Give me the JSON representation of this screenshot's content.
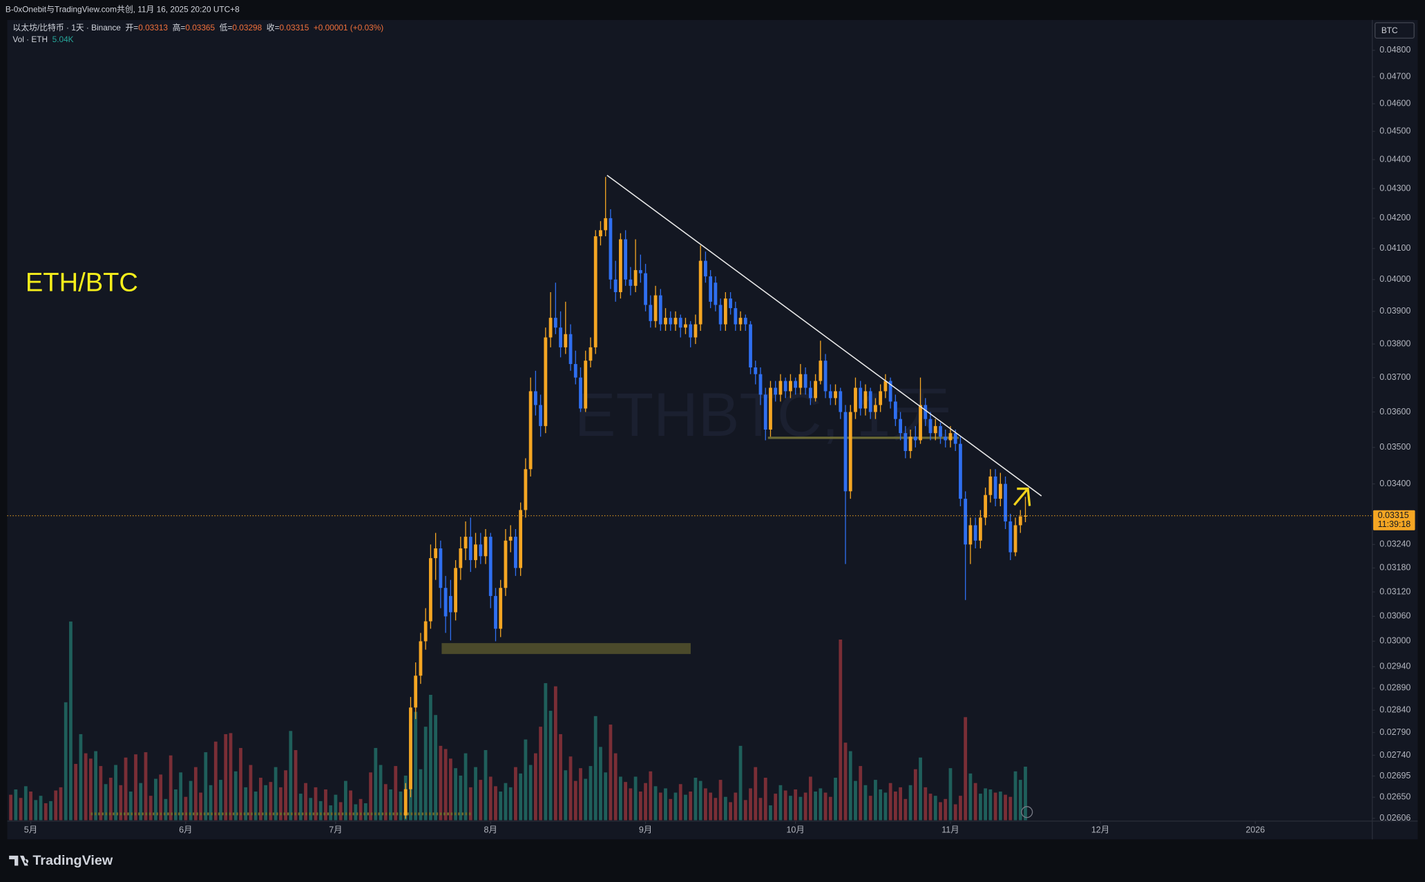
{
  "header": {
    "share": "B-0xOnebit与TradingView.com共创, 11月 16, 2025 20:20 UTC+8",
    "brand": "TradingView"
  },
  "chart_data": {
    "type": "candlestick",
    "symbol": "以太坊/比特币 · 1天 · Binance",
    "ohlc_labels": [
      "开=",
      "高=",
      "低=",
      "收="
    ],
    "change": "+0.00001 (+0.03%)",
    "currency": "BTC",
    "annotation": "ETH/BTC",
    "watermark": "ETHBTC, 1天",
    "countdown": "11:39:18",
    "up_color": "#f5a623",
    "down_color": "#2f6ff0",
    "log_scale": true,
    "grid": false,
    "xlim": [
      -0.7,
      272.4
    ],
    "xticks": [
      {
        "value": 4,
        "label": "5月"
      },
      {
        "value": 35,
        "label": "6月"
      },
      {
        "value": 65,
        "label": "7月"
      },
      {
        "value": 96,
        "label": "8月"
      },
      {
        "value": 127,
        "label": "9月"
      },
      {
        "value": 157,
        "label": "10月"
      },
      {
        "value": 188,
        "label": "11月"
      },
      {
        "value": 218,
        "label": "12月"
      },
      {
        "value": 249,
        "label": "2026"
      }
    ],
    "ylim": [
      0.02602,
      0.04917
    ],
    "yticks": [
      {
        "value": 0.048,
        "label": "0.04800"
      },
      {
        "value": 0.047,
        "label": "0.04700"
      },
      {
        "value": 0.046,
        "label": "0.04600"
      },
      {
        "value": 0.045,
        "label": "0.04500"
      },
      {
        "value": 0.044,
        "label": "0.04400"
      },
      {
        "value": 0.043,
        "label": "0.04300"
      },
      {
        "value": 0.042,
        "label": "0.04200"
      },
      {
        "value": 0.041,
        "label": "0.04100"
      },
      {
        "value": 0.04,
        "label": "0.04000"
      },
      {
        "value": 0.039,
        "label": "0.03900"
      },
      {
        "value": 0.038,
        "label": "0.03800"
      },
      {
        "value": 0.037,
        "label": "0.03700"
      },
      {
        "value": 0.036,
        "label": "0.03600"
      },
      {
        "value": 0.035,
        "label": "0.03500"
      },
      {
        "value": 0.034,
        "label": "0.03400"
      },
      {
        "value": 0.0324,
        "label": "0.03240"
      },
      {
        "value": 0.0318,
        "label": "0.03180"
      },
      {
        "value": 0.0312,
        "label": "0.03120"
      },
      {
        "value": 0.0306,
        "label": "0.03060"
      },
      {
        "value": 0.03,
        "label": "0.03000"
      },
      {
        "value": 0.0294,
        "label": "0.02940"
      },
      {
        "value": 0.0289,
        "label": "0.02890"
      },
      {
        "value": 0.0284,
        "label": "0.02840"
      },
      {
        "value": 0.0279,
        "label": "0.02790"
      },
      {
        "value": 0.0274,
        "label": "0.02740"
      },
      0.02695,
      {
        "value": 0.0265,
        "label": "0.02650"
      },
      0.02606
    ],
    "open": [
      null,
      null,
      null,
      null,
      null,
      null,
      null,
      null,
      null,
      null,
      null,
      null,
      null,
      null,
      null,
      null,
      null,
      null,
      null,
      null,
      null,
      null,
      null,
      null,
      null,
      null,
      null,
      null,
      null,
      null,
      null,
      null,
      null,
      null,
      null,
      null,
      null,
      null,
      null,
      null,
      null,
      null,
      null,
      null,
      null,
      null,
      null,
      null,
      null,
      null,
      null,
      null,
      null,
      null,
      null,
      null,
      null,
      null,
      null,
      null,
      null,
      null,
      null,
      null,
      null,
      null,
      null,
      null,
      null,
      null,
      null,
      null,
      null,
      null,
      null,
      null,
      null,
      null,
      null,
      0.02612,
      0.02667,
      0.02846,
      0.02919,
      0.03,
      0.03048,
      0.03205,
      0.0323,
      0.0313,
      0.0311,
      0.0307,
      0.0318,
      0.0323,
      0.0326,
      0.032,
      0.0324,
      0.0321,
      0.0326,
      0.0311,
      0.0303,
      0.0313,
      0.0325,
      0.0326,
      0.0318,
      0.0333,
      0.0344,
      0.0366,
      0.0362,
      0.0356,
      0.0382,
      0.0388,
      0.0385,
      0.0379,
      0.0383,
      0.0374,
      0.037,
      0.0361,
      0.0375,
      0.0379,
      0.0414,
      0.0416,
      0.042,
      0.04,
      0.0396,
      0.0413,
      0.04,
      0.0398,
      0.0403,
      0.0402,
      0.0392,
      0.0387,
      0.0395,
      0.0386,
      0.0388,
      0.0386,
      0.0388,
      0.0385,
      0.0386,
      0.0382,
      0.0386,
      0.0406,
      0.0401,
      0.0399,
      0.0392,
      0.0386,
      0.0394,
      0.0391,
      0.0386,
      0.0388,
      0.0386,
      0.0373,
      0.0371,
      0.0365,
      0.0355,
      0.0367,
      0.0365,
      0.0369,
      0.0366,
      0.0369,
      0.0367,
      0.0371,
      0.0367,
      0.0364,
      0.0369,
      0.0375,
      0.0366,
      0.0364,
      0.0366,
      0.036,
      0.0338,
      0.036,
      0.0367,
      0.0361,
      0.0366,
      0.036,
      0.0362,
      0.0366,
      0.0369,
      0.0363,
      0.0358,
      0.0354,
      0.0349,
      0.0353,
      0.0352,
      0.0362,
      0.0358,
      0.0354,
      0.0356,
      0.0353,
      0.0352,
      0.0354,
      0.0351,
      0.0336,
      0.0324,
      0.0329,
      0.0325,
      0.0331,
      0.0337,
      0.0342,
      0.0336,
      0.034,
      0.033,
      0.0322,
      0.0329,
      0.03313
    ],
    "high": [
      null,
      null,
      null,
      null,
      null,
      null,
      null,
      null,
      null,
      null,
      null,
      null,
      null,
      null,
      null,
      null,
      null,
      null,
      null,
      null,
      null,
      null,
      null,
      null,
      null,
      null,
      null,
      null,
      null,
      null,
      null,
      null,
      null,
      null,
      null,
      null,
      null,
      null,
      null,
      null,
      null,
      null,
      null,
      null,
      null,
      null,
      null,
      null,
      null,
      null,
      null,
      null,
      null,
      null,
      null,
      null,
      null,
      null,
      null,
      null,
      null,
      null,
      null,
      null,
      null,
      null,
      null,
      null,
      null,
      null,
      null,
      null,
      null,
      null,
      null,
      null,
      null,
      null,
      null,
      0.0268,
      0.0287,
      0.0295,
      0.0302,
      0.0308,
      0.0324,
      0.0327,
      0.0325,
      0.0316,
      0.0315,
      0.032,
      0.0326,
      0.033,
      0.0331,
      0.0327,
      0.0327,
      0.0328,
      0.0327,
      0.0313,
      0.0315,
      0.0328,
      0.0329,
      0.0328,
      0.0335,
      0.0347,
      0.037,
      0.0372,
      0.0365,
      0.0385,
      0.0396,
      0.0399,
      0.039,
      0.0393,
      0.0386,
      0.0378,
      0.0373,
      0.0378,
      0.0382,
      0.0416,
      0.0419,
      0.0434,
      0.0423,
      0.0406,
      0.0415,
      0.0416,
      0.0404,
      0.0413,
      0.0408,
      0.0405,
      0.0395,
      0.0398,
      0.0397,
      0.0391,
      0.039,
      0.039,
      0.0389,
      0.0388,
      0.0387,
      0.0389,
      0.0411,
      0.0409,
      0.0403,
      0.0401,
      0.0394,
      0.0396,
      0.0396,
      0.0393,
      0.039,
      0.0389,
      0.0387,
      0.0375,
      0.0373,
      0.0367,
      0.0369,
      0.0369,
      0.0371,
      0.037,
      0.0371,
      0.037,
      0.0374,
      0.0373,
      0.0369,
      0.0371,
      0.0381,
      0.0377,
      0.0368,
      0.0368,
      0.0367,
      0.0362,
      0.0362,
      0.037,
      0.0369,
      0.0368,
      0.0367,
      0.0364,
      0.0368,
      0.0371,
      0.037,
      0.0365,
      0.036,
      0.0356,
      0.0355,
      0.0356,
      0.037,
      0.0364,
      0.036,
      0.0358,
      0.0357,
      0.0355,
      0.0356,
      0.0355,
      0.0353,
      0.0338,
      0.0331,
      0.0331,
      0.0333,
      0.0339,
      0.0344,
      0.0344,
      0.0343,
      0.0342,
      0.0332,
      0.0331,
      0.0333,
      0.03365
    ],
    "low": [
      null,
      null,
      null,
      null,
      null,
      null,
      null,
      null,
      null,
      null,
      null,
      null,
      null,
      null,
      null,
      null,
      null,
      null,
      null,
      null,
      null,
      null,
      null,
      null,
      null,
      null,
      null,
      null,
      null,
      null,
      null,
      null,
      null,
      null,
      null,
      null,
      null,
      null,
      null,
      null,
      null,
      null,
      null,
      null,
      null,
      null,
      null,
      null,
      null,
      null,
      null,
      null,
      null,
      null,
      null,
      null,
      null,
      null,
      null,
      null,
      null,
      null,
      null,
      null,
      null,
      null,
      null,
      null,
      null,
      null,
      null,
      null,
      null,
      null,
      null,
      null,
      null,
      null,
      null,
      0.02605,
      0.0265,
      0.0282,
      0.029,
      0.0298,
      0.0303,
      0.0315,
      0.0308,
      0.0302,
      0.03002,
      0.0305,
      0.0315,
      0.032,
      0.0317,
      0.0318,
      0.0319,
      0.0319,
      0.0308,
      0.03,
      0.0301,
      0.0311,
      0.0322,
      0.0316,
      0.0316,
      0.0331,
      0.0342,
      0.0359,
      0.0353,
      0.0354,
      0.0379,
      0.0383,
      0.0376,
      0.0377,
      0.0372,
      0.0368,
      0.036,
      0.036,
      0.0373,
      0.0377,
      0.0411,
      0.0414,
      0.0397,
      0.0393,
      0.0394,
      0.0398,
      0.0395,
      0.0396,
      0.0399,
      0.039,
      0.0385,
      0.0385,
      0.0384,
      0.0384,
      0.0384,
      0.0384,
      0.0382,
      0.0383,
      0.0379,
      0.038,
      0.0384,
      0.0399,
      0.0391,
      0.039,
      0.0384,
      0.0384,
      0.0389,
      0.0384,
      0.0384,
      0.0384,
      0.0371,
      0.0368,
      0.0362,
      0.0352,
      0.0353,
      0.0363,
      0.0363,
      0.0364,
      0.0364,
      0.0365,
      0.0365,
      0.0365,
      0.0362,
      0.0363,
      0.0368,
      0.0364,
      0.0362,
      0.0362,
      0.0358,
      0.0319,
      0.0336,
      0.0358,
      0.0359,
      0.0359,
      0.0358,
      0.0358,
      0.036,
      0.0364,
      0.0361,
      0.0356,
      0.0352,
      0.0347,
      0.0347,
      0.035,
      0.0351,
      0.0356,
      0.0352,
      0.0352,
      0.0351,
      0.035,
      0.035,
      0.0349,
      0.0334,
      0.031,
      0.0319,
      0.0323,
      0.0323,
      0.0329,
      0.0335,
      0.0334,
      0.0334,
      0.0328,
      0.032,
      0.0321,
      0.0327,
      0.03298
    ],
    "close": [
      null,
      null,
      null,
      null,
      null,
      null,
      null,
      null,
      null,
      null,
      null,
      null,
      null,
      null,
      null,
      null,
      null,
      null,
      null,
      null,
      null,
      null,
      null,
      null,
      null,
      null,
      null,
      null,
      null,
      null,
      null,
      null,
      null,
      null,
      null,
      null,
      null,
      null,
      null,
      null,
      null,
      null,
      null,
      null,
      null,
      null,
      null,
      null,
      null,
      null,
      null,
      null,
      null,
      null,
      null,
      null,
      null,
      null,
      null,
      null,
      null,
      null,
      null,
      null,
      null,
      null,
      null,
      null,
      null,
      null,
      null,
      null,
      null,
      null,
      null,
      null,
      null,
      null,
      null,
      0.02667,
      0.02846,
      0.02919,
      0.03,
      0.03048,
      0.03205,
      0.0323,
      0.0313,
      0.0306,
      0.0307,
      0.0318,
      0.0323,
      0.0326,
      0.032,
      0.0324,
      0.0321,
      0.0326,
      0.0311,
      0.0303,
      0.0313,
      0.0325,
      0.0326,
      0.0318,
      0.0333,
      0.0344,
      0.0366,
      0.0362,
      0.0356,
      0.0382,
      0.0388,
      0.0385,
      0.0379,
      0.0383,
      0.0374,
      0.037,
      0.0361,
      0.0375,
      0.0379,
      0.0414,
      0.0416,
      0.042,
      0.04,
      0.0396,
      0.0413,
      0.04,
      0.0398,
      0.0403,
      0.0402,
      0.0392,
      0.0387,
      0.0395,
      0.0386,
      0.0388,
      0.0386,
      0.0388,
      0.0385,
      0.0386,
      0.0382,
      0.0386,
      0.0406,
      0.0401,
      0.0393,
      0.0392,
      0.0386,
      0.0394,
      0.0391,
      0.0386,
      0.0388,
      0.0386,
      0.0373,
      0.0371,
      0.0365,
      0.0355,
      0.0367,
      0.0365,
      0.0369,
      0.0366,
      0.0369,
      0.0367,
      0.0371,
      0.0367,
      0.0364,
      0.0369,
      0.0375,
      0.0366,
      0.0364,
      0.0366,
      0.036,
      0.0338,
      0.036,
      0.0367,
      0.0361,
      0.0366,
      0.036,
      0.0362,
      0.0366,
      0.0369,
      0.0363,
      0.0358,
      0.0354,
      0.0349,
      0.0353,
      0.0352,
      0.0362,
      0.0358,
      0.0354,
      0.0356,
      0.0353,
      0.0352,
      0.0354,
      0.0351,
      0.0336,
      0.0324,
      0.0329,
      0.0325,
      0.0331,
      0.0337,
      0.0342,
      0.0336,
      0.034,
      0.033,
      0.0322,
      0.0329,
      0.03313,
      0.03315
    ],
    "volume": {
      "name": "Vol · ETH",
      "current_label": "5.04K",
      "up_color": "#1f5f5b",
      "down_color": "#7a2e36",
      "ylim": [
        0,
        20000
      ],
      "values": [
        2400,
        2900,
        2100,
        3200,
        2700,
        1900,
        2300,
        1600,
        1800,
        2800,
        3100,
        11100,
        18700,
        5300,
        8100,
        6300,
        5800,
        6500,
        5100,
        3400,
        4000,
        5200,
        3300,
        5900,
        2700,
        6200,
        3500,
        6400,
        2300,
        3900,
        4300,
        2000,
        6100,
        2900,
        4500,
        2200,
        3700,
        5000,
        2600,
        6400,
        3300,
        7400,
        3800,
        8100,
        8200,
        4600,
        6800,
        3100,
        5200,
        2700,
        4000,
        3300,
        3600,
        5000,
        3100,
        4700,
        8400,
        6600,
        2500,
        3500,
        2100,
        3100,
        1800,
        2900,
        1400,
        2400,
        1700,
        3700,
        2800,
        1500,
        2000,
        1600,
        4500,
        6800,
        5200,
        3400,
        2900,
        5100,
        2700,
        4200,
        9100,
        10200,
        4800,
        8800,
        11800,
        9900,
        7000,
        6700,
        5800,
        4900,
        4200,
        6300,
        3100,
        5000,
        3800,
        6600,
        4100,
        3200,
        2700,
        3500,
        3100,
        5000,
        4400,
        7600,
        5200,
        6300,
        8800,
        12900,
        10300,
        12600,
        8100,
        4700,
        6000,
        3700,
        4900,
        3900,
        5100,
        9800,
        6900,
        4500,
        9000,
        6300,
        4100,
        3600,
        3000,
        4100,
        2700,
        3500,
        4600,
        3200,
        2600,
        3000,
        2000,
        2600,
        3400,
        2400,
        2700,
        4000,
        3700,
        3000,
        2600,
        2100,
        3800,
        2200,
        1700,
        2600,
        7000,
        1900,
        3000,
        5000,
        2100,
        4000,
        1400,
        2500,
        3300,
        2800,
        2300,
        2900,
        2200,
        2600,
        4100,
        2700,
        3000,
        2600,
        2200,
        4000,
        17000,
        7300,
        6500,
        3700,
        5100,
        3300,
        2300,
        3800,
        2900,
        2600,
        3500,
        2700,
        3100,
        2000,
        3300,
        4800,
        5900,
        3100,
        2500,
        2300,
        1700,
        2000,
        4900,
        1500,
        2300,
        9700,
        4400,
        3500,
        2500,
        3000,
        2900,
        2600,
        2700,
        2400,
        2200,
        4600,
        3800,
        5040
      ],
      "up": [
        0,
        1,
        0,
        1,
        0,
        1,
        1,
        0,
        1,
        0,
        0,
        1,
        1,
        0,
        1,
        0,
        0,
        1,
        0,
        1,
        0,
        1,
        0,
        0,
        1,
        0,
        1,
        0,
        0,
        1,
        0,
        1,
        0,
        1,
        1,
        0,
        1,
        0,
        0,
        1,
        1,
        0,
        1,
        0,
        0,
        1,
        0,
        1,
        0,
        1,
        0,
        1,
        0,
        1,
        0,
        0,
        1,
        0,
        1,
        0,
        1,
        0,
        1,
        0,
        1,
        1,
        0,
        1,
        0,
        1,
        0,
        1,
        0,
        1,
        1,
        0,
        1,
        0,
        1,
        1,
        1,
        1,
        1,
        1,
        1,
        1,
        0,
        0,
        0,
        1,
        1,
        1,
        0,
        1,
        0,
        1,
        0,
        0,
        1,
        1,
        1,
        0,
        1,
        1,
        1,
        0,
        0,
        1,
        1,
        0,
        0,
        1,
        0,
        0,
        0,
        1,
        1,
        1,
        1,
        1,
        0,
        0,
        1,
        0,
        0,
        1,
        0,
        0,
        0,
        1,
        0,
        1,
        0,
        1,
        0,
        1,
        0,
        1,
        1,
        0,
        0,
        0,
        0,
        1,
        0,
        0,
        1,
        0,
        0,
        0,
        0,
        0,
        1,
        0,
        1,
        0,
        1,
        0,
        1,
        0,
        0,
        1,
        1,
        0,
        0,
        1,
        0,
        0,
        1,
        1,
        0,
        1,
        0,
        1,
        1,
        1,
        0,
        0,
        0,
        0,
        1,
        0,
        1,
        0,
        0,
        1,
        0,
        0,
        1,
        0,
        0,
        0,
        1,
        0,
        1,
        1,
        1,
        0,
        1,
        0,
        0,
        1,
        1,
        1
      ]
    }
  }
}
